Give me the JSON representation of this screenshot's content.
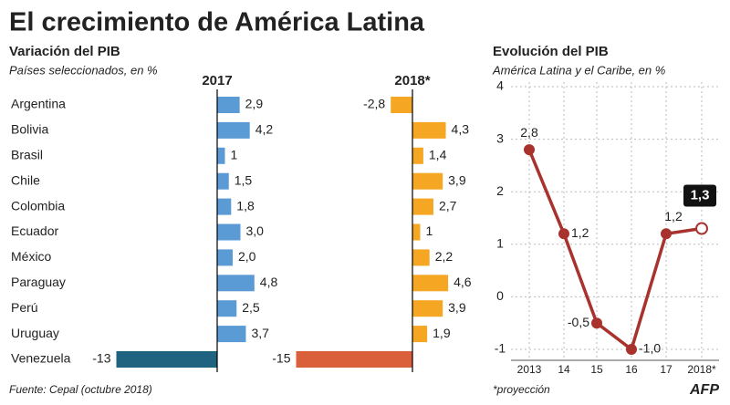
{
  "title": "El crecimiento de América Latina",
  "left_title": "Variación del PIB",
  "left_subtitle": "Países seleccionados, en %",
  "source": "Fuente: Cepal (octubre 2018)",
  "note": "*proyección",
  "logo": "AFP",
  "chart_data": [
    {
      "type": "hbar",
      "title": "2017",
      "categories": [
        "Argentina",
        "Bolivia",
        "Brasil",
        "Chile",
        "Colombia",
        "Ecuador",
        "México",
        "Paraguay",
        "Perú",
        "Uruguay",
        "Venezuela"
      ],
      "values": [
        2.9,
        4.2,
        1,
        1.5,
        1.8,
        3.0,
        2.0,
        4.8,
        2.5,
        3.7,
        -13
      ],
      "value_labels": [
        "2,9",
        "4,2",
        "1",
        "1,5",
        "1,8",
        "3,0",
        "2,0",
        "4,8",
        "2,5",
        "3,7",
        "-13"
      ],
      "colors": [
        "#5b9bd5",
        "#5b9bd5",
        "#5b9bd5",
        "#5b9bd5",
        "#5b9bd5",
        "#5b9bd5",
        "#5b9bd5",
        "#5b9bd5",
        "#5b9bd5",
        "#5b9bd5",
        "#1f6381"
      ]
    },
    {
      "type": "hbar",
      "title": "2018*",
      "values": [
        -2.8,
        4.3,
        1.4,
        3.9,
        2.7,
        1,
        2.2,
        4.6,
        3.9,
        1.9,
        -15
      ],
      "value_labels": [
        "-2,8",
        "4,3",
        "1,4",
        "3,9",
        "2,7",
        "1",
        "2,2",
        "4,6",
        "3,9",
        "1,9",
        "-15"
      ],
      "colors": [
        "#f5a623",
        "#f5a623",
        "#f5a623",
        "#f5a623",
        "#f5a623",
        "#f5a623",
        "#f5a623",
        "#f5a623",
        "#f5a623",
        "#f5a623",
        "#d9603b"
      ]
    },
    {
      "type": "line",
      "title": "Evolución del PIB",
      "subtitle": "América Latina y el Caribe, en %",
      "categories": [
        "2013",
        "14",
        "15",
        "16",
        "17",
        "2018*"
      ],
      "values": [
        2.8,
        1.2,
        -0.5,
        -1.0,
        1.2,
        1.3
      ],
      "value_labels": [
        "2,8",
        "1,2",
        "-0,5",
        "-1,0",
        "1,2",
        "1,3"
      ],
      "color": "#a8322d",
      "ylim": [
        -1,
        4
      ],
      "yticks": [
        -1,
        0,
        1,
        2,
        3,
        4
      ],
      "grid": true
    }
  ]
}
